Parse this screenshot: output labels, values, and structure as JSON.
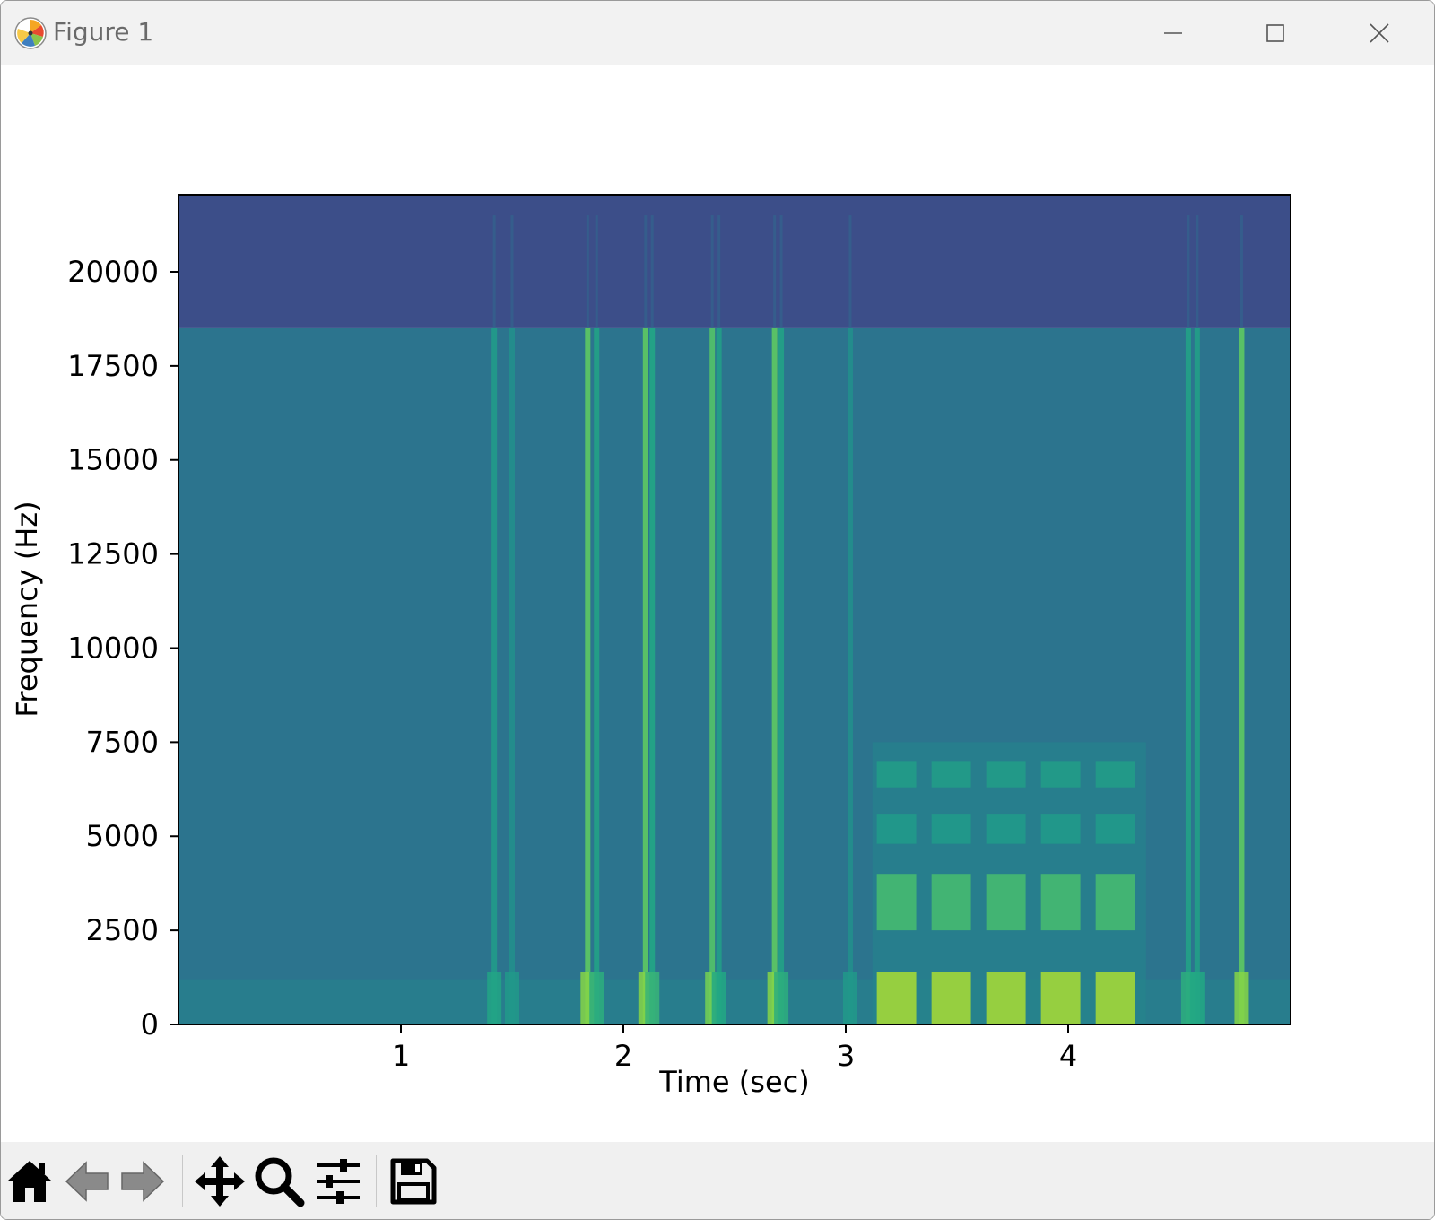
{
  "window": {
    "title": "Figure 1",
    "controls": {
      "minimize": "minimize-icon",
      "maximize": "maximize-icon",
      "close": "close-icon"
    }
  },
  "toolbar": {
    "tools": [
      "home-icon",
      "back-arrow-icon",
      "forward-arrow-icon",
      "pan-move-icon",
      "zoom-magnifier-icon",
      "configure-subplots-icon",
      "save-floppy-icon"
    ]
  },
  "chart_data": {
    "type": "heatmap",
    "kind": "spectrogram",
    "colormap": "viridis",
    "xlabel": "Time (sec)",
    "ylabel": "Frequency (Hz)",
    "xlim": [
      0,
      5
    ],
    "ylim": [
      0,
      22050
    ],
    "x_ticks": [
      1,
      2,
      3,
      4
    ],
    "y_ticks": [
      0,
      2500,
      5000,
      7500,
      10000,
      12500,
      15000,
      17500,
      20000
    ],
    "grid": false,
    "background_level_below_cutoff": 0.48,
    "background_level_above_cutoff": 0.3,
    "cutoff_frequency": 18500,
    "transients": [
      {
        "time": 1.42,
        "level": 0.68
      },
      {
        "time": 1.5,
        "level": 0.62
      },
      {
        "time": 1.84,
        "level": 0.86
      },
      {
        "time": 1.88,
        "level": 0.72
      },
      {
        "time": 2.1,
        "level": 0.86
      },
      {
        "time": 2.13,
        "level": 0.74
      },
      {
        "time": 2.4,
        "level": 0.84
      },
      {
        "time": 2.43,
        "level": 0.7
      },
      {
        "time": 2.68,
        "level": 0.86
      },
      {
        "time": 2.71,
        "level": 0.72
      },
      {
        "time": 3.02,
        "level": 0.62
      },
      {
        "time": 4.54,
        "level": 0.72
      },
      {
        "time": 4.58,
        "level": 0.7
      },
      {
        "time": 4.78,
        "level": 0.86
      }
    ],
    "voiced_segment": {
      "time_range": [
        3.12,
        4.35
      ],
      "formant_bands": [
        {
          "freq_range": [
            0,
            1400
          ],
          "level": 0.95
        },
        {
          "freq_range": [
            2500,
            4000
          ],
          "level": 0.82
        },
        {
          "freq_range": [
            4800,
            5600
          ],
          "level": 0.68
        },
        {
          "freq_range": [
            6300,
            7000
          ],
          "level": 0.7
        }
      ]
    }
  }
}
